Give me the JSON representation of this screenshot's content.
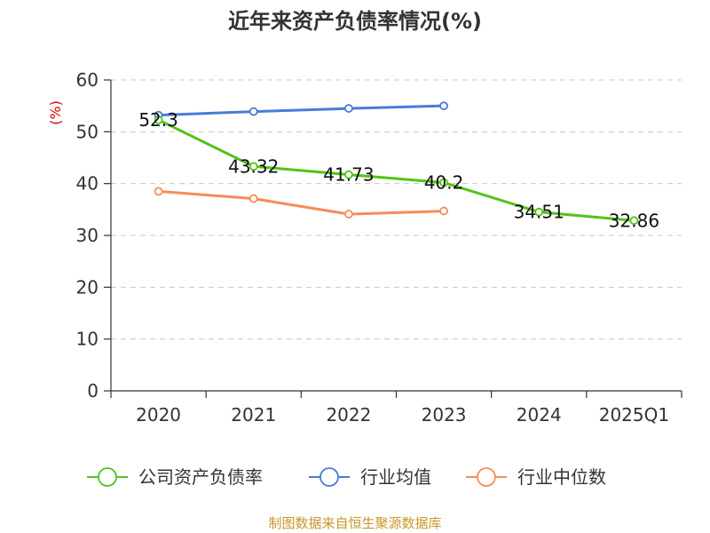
{
  "chart_data": {
    "type": "line",
    "title": "近年来资产负债率情况(%)",
    "ylabel": "(%)",
    "xlabel": "",
    "categories": [
      "2020",
      "2021",
      "2022",
      "2023",
      "2024",
      "2025Q1"
    ],
    "ylim": [
      0,
      60
    ],
    "yticks": [
      0,
      10,
      20,
      30,
      40,
      50,
      60
    ],
    "grid": true,
    "legend_position": "bottom",
    "series": [
      {
        "name": "公司资产负债率",
        "color": "#52c41a",
        "values": [
          52.3,
          43.32,
          41.73,
          40.2,
          34.51,
          32.86
        ],
        "labels": [
          "52.3",
          "43.32",
          "41.73",
          "40.2",
          "34.51",
          "32.86"
        ]
      },
      {
        "name": "行业均值",
        "color": "#4a7bd8",
        "values": [
          53.2,
          53.9,
          54.5,
          55.0,
          null,
          null
        ]
      },
      {
        "name": "行业中位数",
        "color": "#f58c5a",
        "values": [
          38.5,
          37.1,
          34.1,
          34.7,
          null,
          null
        ]
      }
    ],
    "source": "制图数据来自恒生聚源数据库"
  }
}
